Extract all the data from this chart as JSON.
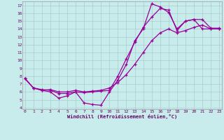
{
  "background_color": "#c8ecec",
  "grid_color": "#aacccc",
  "line_color": "#990099",
  "xlim": [
    -0.3,
    23.3
  ],
  "ylim": [
    3.8,
    17.5
  ],
  "yticks": [
    4,
    5,
    6,
    7,
    8,
    9,
    10,
    11,
    12,
    13,
    14,
    15,
    16,
    17
  ],
  "xticks": [
    0,
    1,
    2,
    3,
    4,
    5,
    6,
    7,
    8,
    9,
    10,
    11,
    12,
    13,
    14,
    15,
    16,
    17,
    18,
    19,
    20,
    21,
    22,
    23
  ],
  "line1_x": [
    0,
    1,
    2,
    3,
    4,
    5,
    6,
    7,
    8,
    9,
    10,
    11,
    12,
    13,
    14,
    15,
    16,
    17,
    18,
    19,
    20,
    21,
    22,
    23
  ],
  "line1_y": [
    7.7,
    6.5,
    6.2,
    6.0,
    5.2,
    5.5,
    6.0,
    4.6,
    4.4,
    4.3,
    6.0,
    7.5,
    9.5,
    12.5,
    14.0,
    17.2,
    16.8,
    16.1,
    14.0,
    15.0,
    15.2,
    14.0,
    14.0,
    14.0
  ],
  "line2_x": [
    0,
    1,
    2,
    3,
    4,
    5,
    6,
    7,
    8,
    9,
    10,
    11,
    12,
    13,
    14,
    15,
    16,
    17,
    18,
    19,
    20,
    21,
    22,
    23
  ],
  "line2_y": [
    7.7,
    6.5,
    6.2,
    6.3,
    6.0,
    6.0,
    6.2,
    6.0,
    6.1,
    6.2,
    6.5,
    7.2,
    8.2,
    9.5,
    11.0,
    12.5,
    13.5,
    14.0,
    13.5,
    13.8,
    14.2,
    14.5,
    14.0,
    14.0
  ],
  "line3_x": [
    0,
    1,
    2,
    3,
    4,
    5,
    6,
    7,
    8,
    9,
    10,
    11,
    12,
    13,
    14,
    15,
    16,
    17,
    18,
    19,
    20,
    21,
    22,
    23
  ],
  "line3_y": [
    7.7,
    6.5,
    6.3,
    6.2,
    5.8,
    5.8,
    6.0,
    5.9,
    6.0,
    6.1,
    6.2,
    8.0,
    10.2,
    12.3,
    14.2,
    15.5,
    16.6,
    16.4,
    13.8,
    15.0,
    15.2,
    15.2,
    14.1,
    14.1
  ],
  "xlabel": "Windchill (Refroidissement éolien,°C)"
}
